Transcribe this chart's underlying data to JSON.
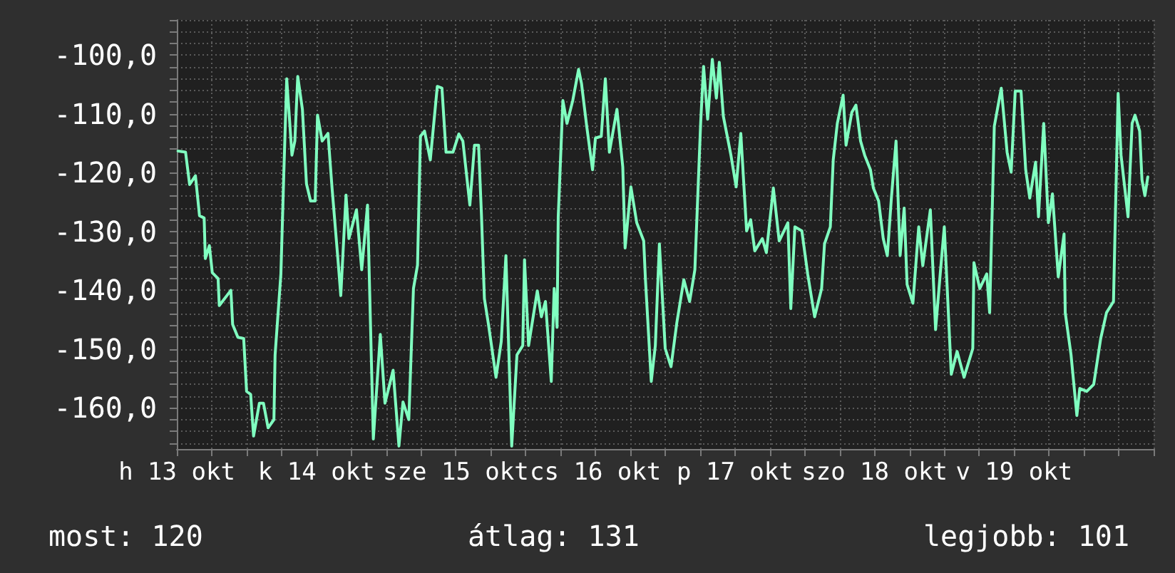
{
  "chart_data": {
    "type": "line",
    "xlim": [
      "--10-13T12:00",
      "--10-20T12:00"
    ],
    "ylim": [
      -167,
      -94
    ],
    "grid": true,
    "marker": "none",
    "line_style": "solid",
    "xticks": [
      {
        "value": "--10-13T12:00",
        "label": "h 13 okt"
      },
      {
        "value": "--10-13T18:00",
        "label": null
      },
      {
        "value": "--10-14T00:00",
        "label": null
      },
      {
        "value": "--10-14T06:00",
        "label": null
      },
      {
        "value": "--10-14T12:00",
        "label": "k 14 okt"
      },
      {
        "value": "--10-14T18:00",
        "label": null
      },
      {
        "value": "--10-15T00:00",
        "label": null
      },
      {
        "value": "--10-15T06:00",
        "label": null
      },
      {
        "value": "--10-15T12:00",
        "label": "sze 15 okt"
      },
      {
        "value": "--10-15T18:00",
        "label": null
      },
      {
        "value": "--10-16T00:00",
        "label": null
      },
      {
        "value": "--10-16T06:00",
        "label": null
      },
      {
        "value": "--10-16T12:00",
        "label": "cs 16 okt"
      },
      {
        "value": "--10-16T18:00",
        "label": null
      },
      {
        "value": "--10-17T00:00",
        "label": null
      },
      {
        "value": "--10-17T06:00",
        "label": null
      },
      {
        "value": "--10-17T12:00",
        "label": "p 17 okt"
      },
      {
        "value": "--10-17T18:00",
        "label": null
      },
      {
        "value": "--10-18T00:00",
        "label": null
      },
      {
        "value": "--10-18T06:00",
        "label": null
      },
      {
        "value": "--10-18T12:00",
        "label": "szo 18 okt"
      },
      {
        "value": "--10-18T18:00",
        "label": null
      },
      {
        "value": "--10-19T00:00",
        "label": null
      },
      {
        "value": "--10-19T06:00",
        "label": null
      },
      {
        "value": "--10-19T12:00",
        "label": "v 19 okt"
      },
      {
        "value": "--10-19T18:00",
        "label": null
      },
      {
        "value": "--10-20T00:00",
        "label": null
      },
      {
        "value": "--10-20T06:00",
        "label": null
      },
      {
        "value": "--10-20T12:00",
        "label": null
      }
    ],
    "yticks": [
      {
        "value": -166,
        "label": null
      },
      {
        "value": -164,
        "label": null
      },
      {
        "value": -162,
        "label": null
      },
      {
        "value": -160,
        "label": "-160,0"
      },
      {
        "value": -158,
        "label": null
      },
      {
        "value": -156,
        "label": null
      },
      {
        "value": -154,
        "label": null
      },
      {
        "value": -152,
        "label": null
      },
      {
        "value": -150,
        "label": "-150,0"
      },
      {
        "value": -148,
        "label": null
      },
      {
        "value": -146,
        "label": null
      },
      {
        "value": -144,
        "label": null
      },
      {
        "value": -142,
        "label": null
      },
      {
        "value": -140,
        "label": "-140,0"
      },
      {
        "value": -138,
        "label": null
      },
      {
        "value": -136,
        "label": null
      },
      {
        "value": -134,
        "label": null
      },
      {
        "value": -132,
        "label": null
      },
      {
        "value": -130,
        "label": "-130,0"
      },
      {
        "value": -128,
        "label": null
      },
      {
        "value": -126,
        "label": null
      },
      {
        "value": -124,
        "label": null
      },
      {
        "value": -122,
        "label": null
      },
      {
        "value": -120,
        "label": "-120,0"
      },
      {
        "value": -118,
        "label": null
      },
      {
        "value": -116,
        "label": null
      },
      {
        "value": -114,
        "label": null
      },
      {
        "value": -112,
        "label": null
      },
      {
        "value": -110,
        "label": "-110,0"
      },
      {
        "value": -108,
        "label": null
      },
      {
        "value": -106,
        "label": null
      },
      {
        "value": -104,
        "label": null
      },
      {
        "value": -102,
        "label": null
      },
      {
        "value": -100,
        "label": "-100,0"
      },
      {
        "value": -98,
        "label": null
      },
      {
        "value": -96,
        "label": null
      },
      {
        "value": -94,
        "label": null
      }
    ],
    "annotations": [
      "most: 120",
      "átlag: 131",
      "legjobb: 101"
    ],
    "series": [
      {
        "color": "#80ffc0",
        "x": [
          "--10-13T12:12",
          "--10-13T13:30",
          "--10-13T14:12",
          "--10-13T15:12",
          "--10-13T15:54",
          "--10-13T16:42",
          "--10-13T16:54",
          "--10-13T17:36",
          "--10-13T18:06",
          "--10-13T19:06",
          "--10-13T19:18",
          "--10-13T21:18",
          "--10-13T21:36",
          "--10-13T22:30",
          "--10-13T23:30",
          "--10-14T00:00",
          "--10-14T00:42",
          "--10-14T01:12",
          "--10-14T02:12",
          "--10-14T02:54",
          "--10-14T03:42",
          "--10-14T04:42",
          "--10-14T04:54",
          "--10-14T05:54",
          "--10-14T06:24",
          "--10-14T06:54",
          "--10-14T07:18",
          "--10-14T07:48",
          "--10-14T08:18",
          "--10-14T08:48",
          "--10-14T09:36",
          "--10-14T10:18",
          "--10-14T11:00",
          "--10-14T11:48",
          "--10-14T12:12",
          "--10-14T13:00",
          "--10-14T14:00",
          "--10-14T14:42",
          "--10-14T15:42",
          "--10-14T16:12",
          "--10-14T17:06",
          "--10-14T17:36",
          "--10-14T18:54",
          "--10-14T19:48",
          "--10-14T20:48",
          "--10-14T21:48",
          "--10-14T23:00",
          "--10-14T23:48",
          "--10-15T01:12",
          "--10-15T02:12",
          "--10-15T02:54",
          "--10-15T03:54",
          "--10-15T04:42",
          "--10-15T05:24",
          "--10-15T05:54",
          "--10-15T06:36",
          "--10-15T07:36",
          "--10-15T08:48",
          "--10-15T09:36",
          "--10-15T10:18",
          "--10-15T11:30",
          "--10-15T12:30",
          "--10-15T13:12",
          "--10-15T14:24",
          "--10-15T15:12",
          "--10-15T15:54",
          "--10-15T16:24",
          "--10-15T16:54",
          "--10-15T17:36",
          "--10-15T18:54",
          "--10-15T19:48",
          "--10-15T20:36",
          "--10-15T21:36",
          "--10-15T22:30",
          "--10-15T23:30",
          "--10-15T23:48",
          "--10-16T00:30",
          "--10-16T02:00",
          "--10-16T02:42",
          "--10-16T03:24",
          "--10-16T04:24",
          "--10-16T04:54",
          "--10-16T05:24",
          "--10-16T05:36",
          "--10-16T06:24",
          "--10-16T07:06",
          "--10-16T08:06",
          "--10-16T09:06",
          "--10-16T09:36",
          "--10-16T10:30",
          "--10-16T11:30",
          "--10-16T12:00",
          "--10-16T13:00",
          "--10-16T13:42",
          "--10-16T14:24",
          "--10-16T15:42",
          "--10-16T16:42",
          "--10-16T17:06",
          "--10-16T18:06",
          "--10-16T19:06",
          "--10-16T20:18",
          "--10-16T20:36",
          "--10-16T21:36",
          "--10-16T22:18",
          "--10-16T23:00",
          "--10-17T00:00",
          "--10-17T01:00",
          "--10-17T02:00",
          "--10-17T03:12",
          "--10-17T04:12",
          "--10-17T05:06",
          "--10-17T06:06",
          "--10-17T06:36",
          "--10-17T07:18",
          "--10-17T08:06",
          "--10-17T08:48",
          "--10-17T09:18",
          "--10-17T10:00",
          "--10-17T11:18",
          "--10-17T12:12",
          "--10-17T13:00",
          "--10-17T14:00",
          "--10-17T14:42",
          "--10-17T15:24",
          "--10-17T16:42",
          "--10-17T17:24",
          "--10-17T18:36",
          "--10-17T19:36",
          "--10-17T21:06",
          "--10-17T21:36",
          "--10-17T22:18",
          "--10-17T23:30",
          "--10-18T00:30",
          "--10-18T01:42",
          "--10-18T02:54",
          "--10-18T03:24",
          "--10-18T04:24",
          "--10-18T04:54",
          "--10-18T05:36",
          "--10-18T06:36",
          "--10-18T07:06",
          "--10-18T08:06",
          "--10-18T08:48",
          "--10-18T09:36",
          "--10-18T10:18",
          "--10-18T11:18",
          "--10-18T11:48",
          "--10-18T12:42",
          "--10-18T13:30",
          "--10-18T14:12",
          "--10-18T14:54",
          "--10-18T15:42",
          "--10-18T16:24",
          "--10-18T17:06",
          "--10-18T17:36",
          "--10-18T18:36",
          "--10-18T19:36",
          "--10-18T20:18",
          "--10-18T21:36",
          "--10-18T22:30",
          "--10-18T23:18",
          "--10-19T00:00",
          "--10-19T01:12",
          "--10-19T02:12",
          "--10-19T03:24",
          "--10-19T04:54",
          "--10-19T05:06",
          "--10-19T06:06",
          "--10-19T07:18",
          "--10-19T07:48",
          "--10-19T08:36",
          "--10-19T09:48",
          "--10-19T10:48",
          "--10-19T11:30",
          "--10-19T12:12",
          "--10-19T13:12",
          "--10-19T14:00",
          "--10-19T14:42",
          "--10-19T15:42",
          "--10-19T16:12",
          "--10-19T17:06",
          "--10-19T17:54",
          "--10-19T18:36",
          "--10-19T19:36",
          "--10-19T20:36",
          "--10-19T20:48",
          "--10-19T21:48",
          "--10-19T22:48",
          "--10-19T23:18",
          "--10-20T00:30",
          "--10-20T01:42",
          "--10-20T02:54",
          "--10-20T03:54",
          "--10-20T05:06",
          "--10-20T05:24",
          "--10-20T05:54",
          "--10-20T06:24",
          "--10-20T07:36",
          "--10-20T08:18",
          "--10-20T08:48",
          "--10-20T09:36",
          "--10-20T10:00",
          "--10-20T10:30",
          "--10-20T11:00"
        ],
        "values": [
          -116.3,
          -116.5,
          -122,
          -120.5,
          -127.3,
          -127.7,
          -134.6,
          -132.4,
          -137,
          -138,
          -142.6,
          -140,
          -145.8,
          -148,
          -148.2,
          -157.2,
          -157.7,
          -164.8,
          -159.2,
          -159.2,
          -163.4,
          -162,
          -151,
          -137.2,
          -120.2,
          -104,
          -109.7,
          -117,
          -114.6,
          -103.6,
          -109.2,
          -121.9,
          -124.8,
          -124.8,
          -110.2,
          -114.6,
          -113.3,
          -122.6,
          -134.6,
          -140.9,
          -123.8,
          -131.2,
          -126.3,
          -136.5,
          -125.5,
          -165.3,
          -147.5,
          -159.2,
          -153.6,
          -166.5,
          -159,
          -162,
          -139.7,
          -135.7,
          -113.8,
          -112.9,
          -117.8,
          -105.3,
          -105.6,
          -116.5,
          -116.5,
          -113.4,
          -114.6,
          -125.5,
          -115.3,
          -115.3,
          -127.3,
          -141.4,
          -145.8,
          -154.8,
          -148.7,
          -134.1,
          -166.5,
          -151,
          -149.4,
          -134.8,
          -149.4,
          -140.1,
          -144.5,
          -141.9,
          -155.5,
          -139.7,
          -146.3,
          -127.5,
          -107.7,
          -111.6,
          -107.7,
          -102.4,
          -104.8,
          -112.1,
          -119.5,
          -114.1,
          -113.8,
          -104,
          -116.5,
          -109.2,
          -119,
          -132.8,
          -122.4,
          -128.5,
          -131.6,
          -138.2,
          -155.5,
          -149.4,
          -132.1,
          -149.9,
          -153,
          -145.5,
          -138.2,
          -141.9,
          -136.5,
          -111.4,
          -101.9,
          -110.9,
          -100.7,
          -107.3,
          -101.2,
          -110.4,
          -117,
          -122.4,
          -113.3,
          -129.9,
          -128,
          -133.3,
          -131.2,
          -133.6,
          -122.6,
          -131.6,
          -128.5,
          -143.1,
          -129.2,
          -129.9,
          -137.2,
          -144.5,
          -139.7,
          -132.1,
          -129.2,
          -117.8,
          -111.6,
          -106.8,
          -115.3,
          -109.7,
          -108.5,
          -114.6,
          -117,
          -119.5,
          -122.6,
          -124.8,
          -131.2,
          -134.1,
          -124.3,
          -114.6,
          -134.1,
          -126,
          -139,
          -142.2,
          -129.2,
          -135.8,
          -126.3,
          -146.7,
          -137.2,
          -129.2,
          -154.3,
          -150.4,
          -154.8,
          -149.9,
          -135.3,
          -139.7,
          -137.2,
          -143.8,
          -112.1,
          -105.6,
          -116.5,
          -119.9,
          -106.1,
          -106.1,
          -119.5,
          -124.3,
          -118.2,
          -127.5,
          -111.6,
          -128.5,
          -123.6,
          -137.7,
          -130.4,
          -143.8,
          -151,
          -161.3,
          -156.7,
          -157.2,
          -156,
          -148.2,
          -143.8,
          -141.9,
          -128.5,
          -106.5,
          -117,
          -127.5,
          -111.6,
          -110.2,
          -112.9,
          -121.2,
          -123.9,
          -120.7
        ]
      }
    ]
  }
}
